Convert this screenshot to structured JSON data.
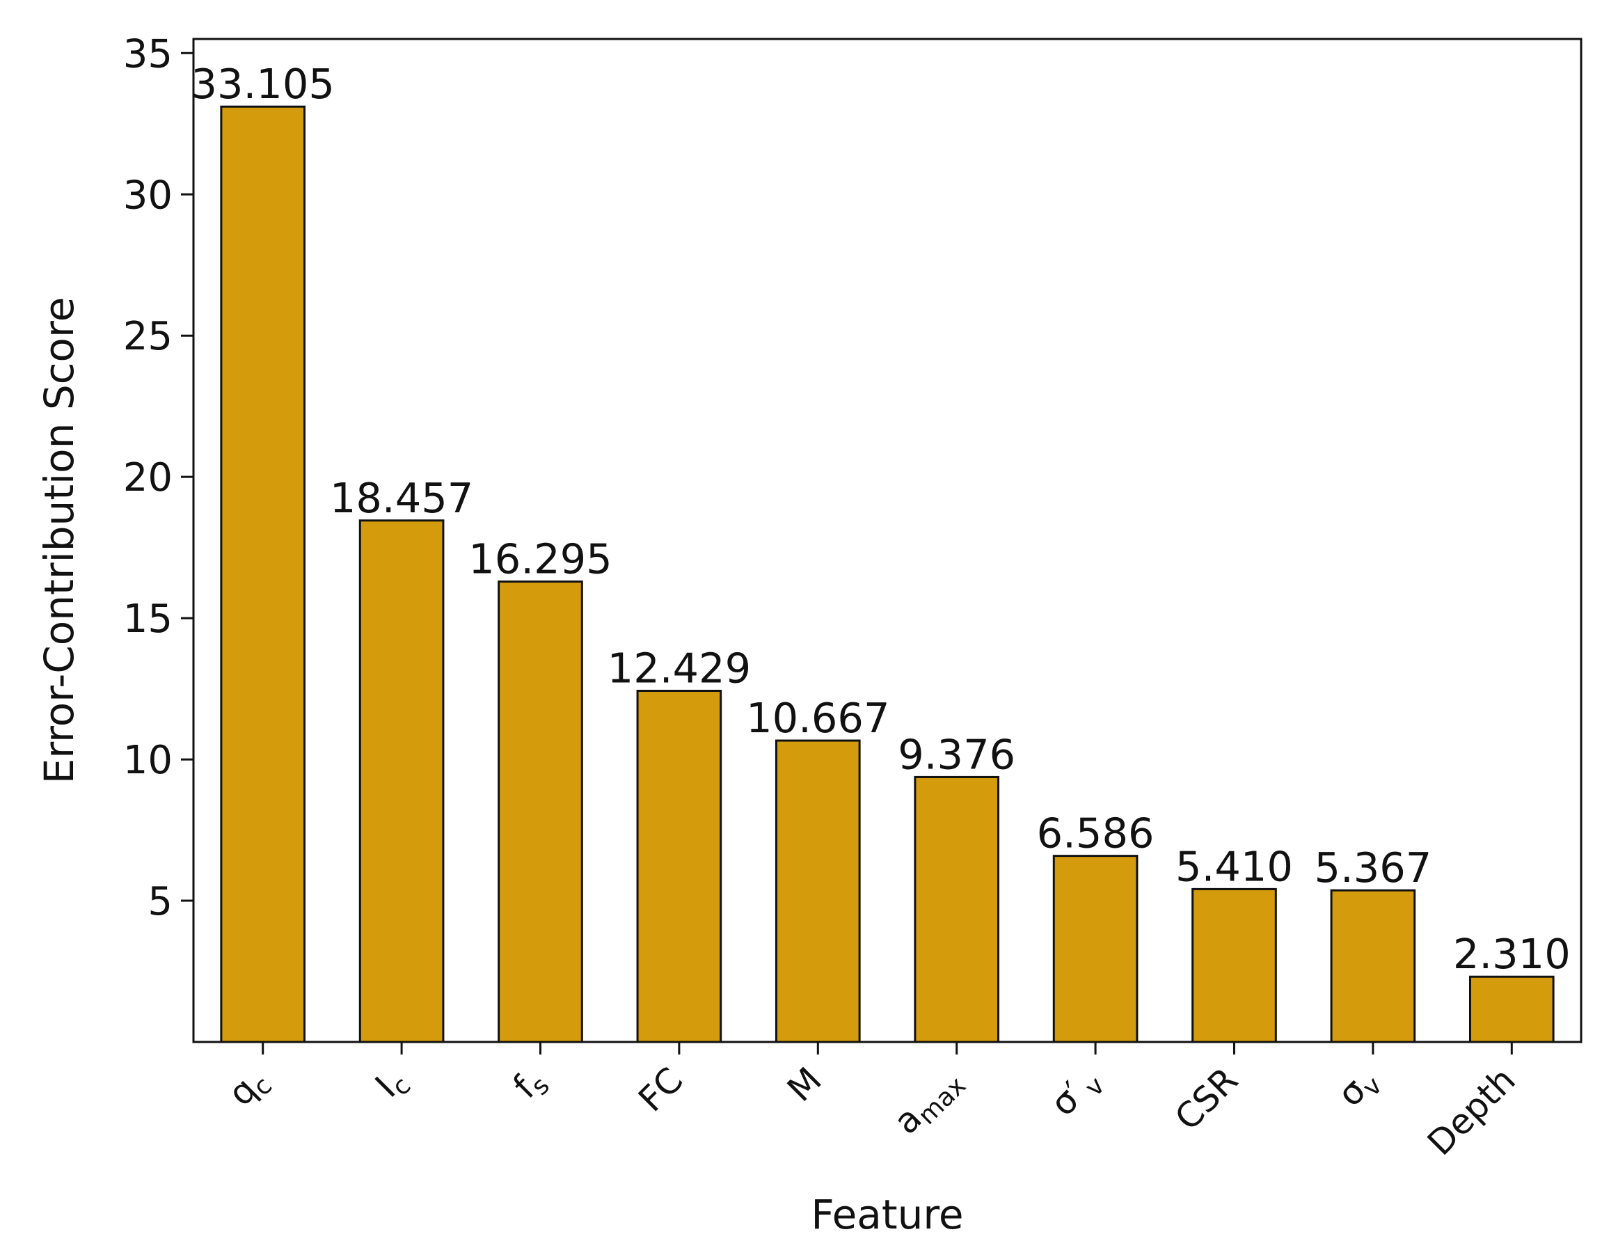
{
  "chart_data": {
    "type": "bar",
    "title": "",
    "xlabel": "Feature",
    "ylabel": "Error-Contribution Score",
    "categories": [
      {
        "base": "q",
        "sub": "c",
        "prime": ""
      },
      {
        "base": "I",
        "sub": "c",
        "prime": ""
      },
      {
        "base": "f",
        "sub": "s",
        "prime": ""
      },
      {
        "base": "FC",
        "sub": "",
        "prime": ""
      },
      {
        "base": "M",
        "sub": "",
        "prime": ""
      },
      {
        "base": "a",
        "sub": "max",
        "prime": ""
      },
      {
        "base": "σ",
        "sub": "v",
        "prime": "′"
      },
      {
        "base": "CSR",
        "sub": "",
        "prime": ""
      },
      {
        "base": "σ",
        "sub": "v",
        "prime": ""
      },
      {
        "base": "Depth",
        "sub": "",
        "prime": ""
      }
    ],
    "values": [
      33.105,
      18.457,
      16.295,
      12.429,
      10.667,
      9.376,
      6.586,
      5.41,
      5.367,
      2.31
    ],
    "data_labels": [
      "33.105",
      "18.457",
      "16.295",
      "12.429",
      "10.667",
      "9.376",
      "6.586",
      "5.410",
      "5.367",
      "2.310"
    ],
    "ylim": [
      0,
      35.5
    ],
    "yticks": [
      5,
      10,
      15,
      20,
      25,
      30,
      35
    ],
    "grid": false,
    "bar_color": "#d49c0c",
    "edge_color": "#111111"
  }
}
